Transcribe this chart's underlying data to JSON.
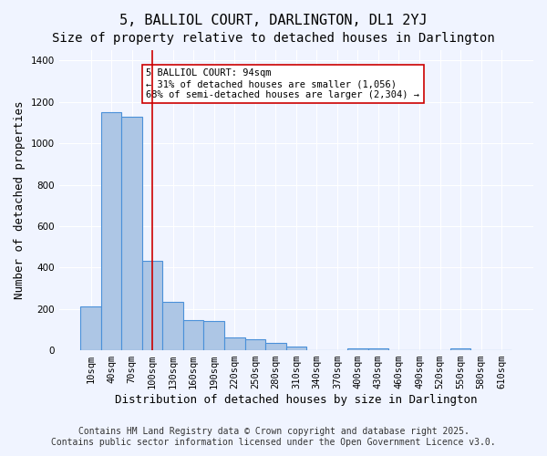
{
  "title": "5, BALLIOL COURT, DARLINGTON, DL1 2YJ",
  "subtitle": "Size of property relative to detached houses in Darlington",
  "xlabel": "Distribution of detached houses by size in Darlington",
  "ylabel": "Number of detached properties",
  "categories": [
    "10sqm",
    "40sqm",
    "70sqm",
    "100sqm",
    "130sqm",
    "160sqm",
    "190sqm",
    "220sqm",
    "250sqm",
    "280sqm",
    "310sqm",
    "340sqm",
    "370sqm",
    "400sqm",
    "430sqm",
    "460sqm",
    "490sqm",
    "520sqm",
    "550sqm",
    "580sqm",
    "610sqm"
  ],
  "values": [
    210,
    1150,
    1130,
    430,
    235,
    145,
    140,
    60,
    55,
    35,
    20,
    0,
    0,
    10,
    10,
    0,
    0,
    0,
    10,
    0,
    0
  ],
  "bar_color": "#adc6e5",
  "bar_edge_color": "#4a90d9",
  "red_line_index": 3,
  "ylim": [
    0,
    1450
  ],
  "yticks": [
    0,
    200,
    400,
    600,
    800,
    1000,
    1200,
    1400
  ],
  "annotation_text": "5 BALLIOL COURT: 94sqm\n← 31% of detached houses are smaller (1,056)\n68% of semi-detached houses are larger (2,304) →",
  "annotation_box_color": "#ffffff",
  "annotation_box_edge": "#cc0000",
  "annotation_text_color": "#000000",
  "red_line_color": "#cc0000",
  "background_color": "#f0f4ff",
  "grid_color": "#ffffff",
  "footer1": "Contains HM Land Registry data © Crown copyright and database right 2025.",
  "footer2": "Contains public sector information licensed under the Open Government Licence v3.0.",
  "title_fontsize": 11,
  "subtitle_fontsize": 10,
  "xlabel_fontsize": 9,
  "ylabel_fontsize": 9,
  "tick_fontsize": 7.5,
  "footer_fontsize": 7
}
